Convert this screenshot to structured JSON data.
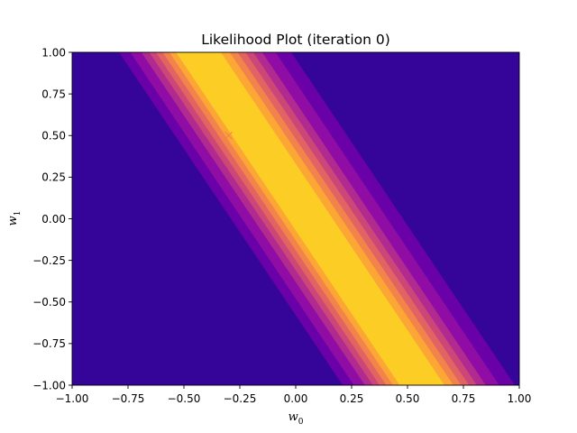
{
  "chart_data": {
    "type": "heatmap",
    "subtype": "filled-contour",
    "title": "Likelihood Plot (iteration 0)",
    "xlabel": "w",
    "xlabel_sub": "0",
    "ylabel": "w",
    "ylabel_sub": "1",
    "xlim": [
      -1.0,
      1.0
    ],
    "ylim": [
      -1.0,
      1.0
    ],
    "xticks": [
      "−1.00",
      "−0.75",
      "−0.50",
      "−0.25",
      "0.00",
      "0.25",
      "0.50",
      "0.75",
      "1.00"
    ],
    "xtick_values": [
      -1.0,
      -0.75,
      -0.5,
      -0.25,
      0.0,
      0.25,
      0.5,
      0.75,
      1.0
    ],
    "yticks": [
      "−1.00",
      "−0.75",
      "−0.50",
      "−0.25",
      "0.00",
      "0.25",
      "0.50",
      "0.75",
      "1.00"
    ],
    "ytick_values": [
      -1.0,
      -0.75,
      -0.5,
      -0.25,
      0.0,
      0.25,
      0.5,
      0.75,
      1.0
    ],
    "grid": false,
    "colormap": "plasma",
    "ridge": {
      "slope_dw0_per_dw1": -0.5,
      "center_w0_at_w1_0": 0.1
    },
    "contour_bands": [
      {
        "w0_left_at_w1_1": -0.79,
        "w0_right_at_w1_1": -0.02,
        "color": "#6a00a8"
      },
      {
        "w0_left_at_w1_1": -0.74,
        "w0_right_at_w1_1": -0.09,
        "color": "#8f0da4"
      },
      {
        "w0_left_at_w1_1": -0.69,
        "w0_right_at_w1_1": -0.15,
        "color": "#b12a90"
      },
      {
        "w0_left_at_w1_1": -0.655,
        "w0_right_at_w1_1": -0.19,
        "color": "#cc4778"
      },
      {
        "w0_left_at_w1_1": -0.625,
        "w0_right_at_w1_1": -0.225,
        "color": "#e16462"
      },
      {
        "w0_left_at_w1_1": -0.595,
        "w0_right_at_w1_1": -0.26,
        "color": "#f2844b"
      },
      {
        "w0_left_at_w1_1": -0.565,
        "w0_right_at_w1_1": -0.295,
        "color": "#fca636"
      },
      {
        "w0_left_at_w1_1": -0.535,
        "w0_right_at_w1_1": -0.335,
        "color": "#fcce25"
      }
    ],
    "background_color": "#350498",
    "peak_color": "#fcce25",
    "marker": {
      "w0": -0.3,
      "w1": 0.5,
      "symbol": "x",
      "color": "#f2844b"
    }
  }
}
